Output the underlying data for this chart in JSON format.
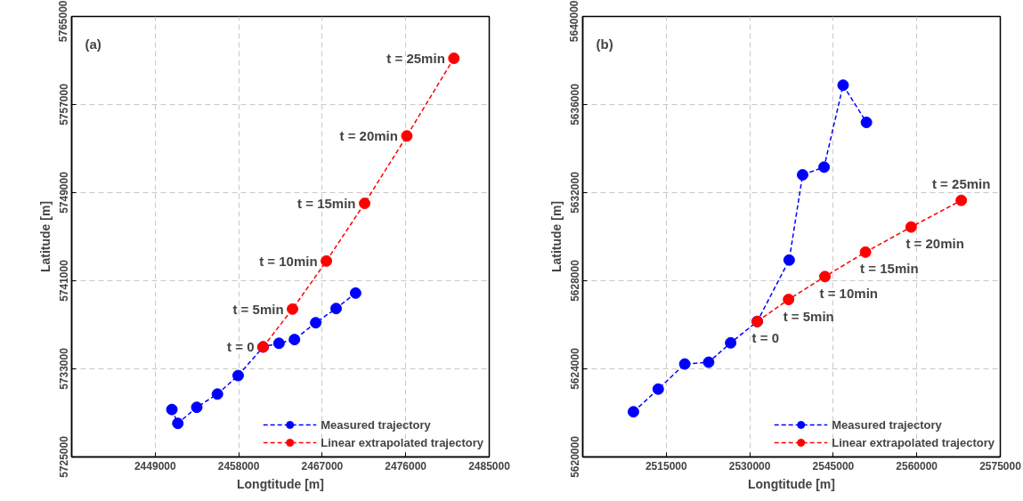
{
  "chart_data": [
    {
      "type": "line",
      "xlabel": "Longtitude [m]",
      "ylabel": "Latitude [m]",
      "xlim": [
        2440000,
        2485000
      ],
      "xticks": [
        2449000,
        2458000,
        2467000,
        2476000,
        2485000
      ],
      "ylim": [
        5725000,
        5765000
      ],
      "yticks": [
        5725000,
        5733000,
        5741000,
        5749000,
        5757000,
        5765000
      ],
      "grid": true,
      "legend": "bottom right",
      "marker": "circle",
      "line_style": "dashed",
      "series": [
        {
          "name": "Measured trajectory",
          "color": "#0000ff",
          "x": [
            2450800,
            2451440,
            2453480,
            2455710,
            2457940,
            2460630,
            2462340,
            2464010,
            2466300,
            2468500,
            2470600
          ],
          "values": [
            5729310,
            5728050,
            5729510,
            5730710,
            5732390,
            5734990,
            5735320,
            5735660,
            5737190,
            5738480,
            5739880
          ]
        },
        {
          "name": "Linear extrapolated trajectory",
          "color": "#ff0000",
          "x": [
            2460630,
            2463800,
            2467450,
            2471570,
            2476120,
            2481190
          ],
          "values": [
            5734990,
            5738430,
            5742790,
            5748030,
            5754150,
            5761200
          ]
        }
      ],
      "annotations": [
        "(a)",
        {
          "text": "t = 0",
          "x": 2460630,
          "y": 5734990
        },
        {
          "text": "t = 5min",
          "x": 2463800,
          "y": 5738430
        },
        {
          "text": "t = 10min",
          "x": 2467450,
          "y": 5742790
        },
        {
          "text": "t = 15min",
          "x": 2471570,
          "y": 5748030
        },
        {
          "text": "t = 20min",
          "x": 2476120,
          "y": 5754150
        },
        {
          "text": "t = 25min",
          "x": 2481190,
          "y": 5761200
        }
      ]
    },
    {
      "type": "line",
      "xlabel": "Longtitude [m]",
      "ylabel": "Latitude [m]",
      "xlim": [
        2500000,
        2575000
      ],
      "xticks": [
        2515000,
        2530000,
        2545000,
        2560000,
        2575000
      ],
      "ylim": [
        5620000,
        5640000
      ],
      "yticks": [
        5620000,
        5624000,
        5628000,
        5632000,
        5636000,
        5640000
      ],
      "grid": true,
      "legend": "bottom right",
      "marker": "circle",
      "line_style": "dashed",
      "series": [
        {
          "name": "Measured trajectory",
          "color": "#0000ff",
          "x": [
            2509110,
            2513560,
            2518330,
            2522620,
            2526570,
            2531350,
            2537080,
            2539490,
            2543350,
            2546770,
            2550960
          ],
          "values": [
            5622050,
            5623080,
            5624220,
            5624300,
            5625180,
            5626150,
            5628940,
            5632810,
            5633160,
            5636880,
            5635190
          ]
        },
        {
          "name": "Linear extrapolated trajectory",
          "color": "#ff0000",
          "x": [
            2531350,
            2536970,
            2543500,
            2550790,
            2558990,
            2567990
          ],
          "values": [
            5626150,
            5627150,
            5628190,
            5629300,
            5630440,
            5631650
          ]
        }
      ],
      "annotations": [
        "(b)",
        {
          "text": "t = 0",
          "x": 2531350,
          "y": 5626150
        },
        {
          "text": "t = 5min",
          "x": 2536970,
          "y": 5627150
        },
        {
          "text": "t = 10min",
          "x": 2543500,
          "y": 5628190
        },
        {
          "text": "t = 15min",
          "x": 2550790,
          "y": 5629300
        },
        {
          "text": "t = 20min",
          "x": 2558990,
          "y": 5630440
        },
        {
          "text": "t = 25min",
          "x": 2567990,
          "y": 5631650
        }
      ]
    }
  ]
}
